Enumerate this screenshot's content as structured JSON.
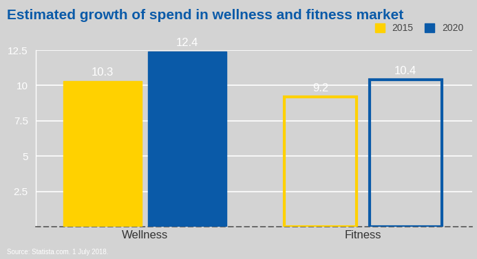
{
  "chart_data": {
    "type": "bar",
    "title": "Estimated growth of spend in wellness and fitness market",
    "categories": [
      "Wellness",
      "Fitness"
    ],
    "series": [
      {
        "name": "2015",
        "color": "#ffd100",
        "values": [
          10.3,
          9.2
        ]
      },
      {
        "name": "2020",
        "color": "#0a5aa8",
        "values": [
          12.4,
          10.4
        ]
      }
    ],
    "ylim": [
      0,
      12.5
    ],
    "yticks": [
      2.5,
      5,
      7.5,
      10,
      12.5
    ],
    "grid": true,
    "legend": "upper right",
    "data_labels": true,
    "source": "Source: Statista.com. 1 July 2018."
  }
}
